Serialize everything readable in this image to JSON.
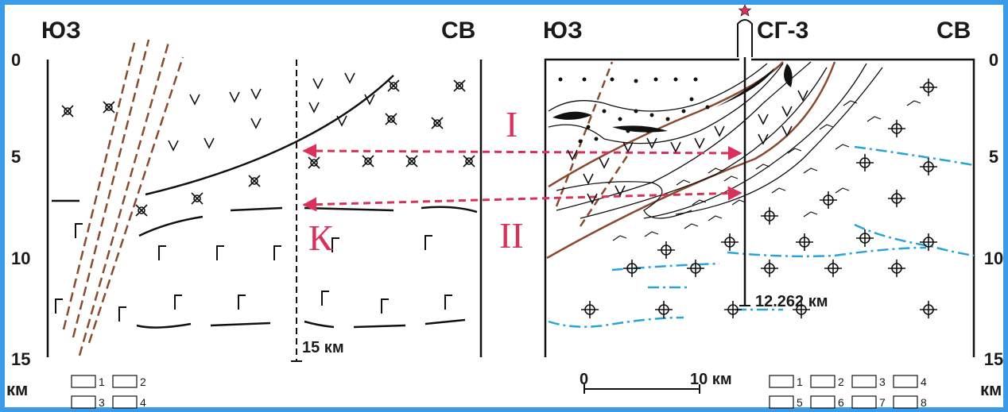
{
  "left_panel": {
    "sw": "ЮЗ",
    "ne": "СВ",
    "depth_ticks": [
      "0",
      "5",
      "10",
      "15"
    ],
    "depth_unit": "км",
    "well_depth": "15 км",
    "legend": [
      "1",
      "2",
      "3",
      "4"
    ]
  },
  "right_panel": {
    "sw": "ЮЗ",
    "well": "СГ-3",
    "ne": "СВ",
    "depth_ticks": [
      "0",
      "5",
      "10",
      "15"
    ],
    "depth_unit": "км",
    "well_depth": "12.262 км",
    "scale": {
      "start": "0",
      "end": "10 км"
    },
    "legend": [
      "1",
      "2",
      "3",
      "4",
      "5",
      "6",
      "7",
      "8"
    ]
  },
  "markers": {
    "upper": "I",
    "lower": "II",
    "left": "К"
  }
}
